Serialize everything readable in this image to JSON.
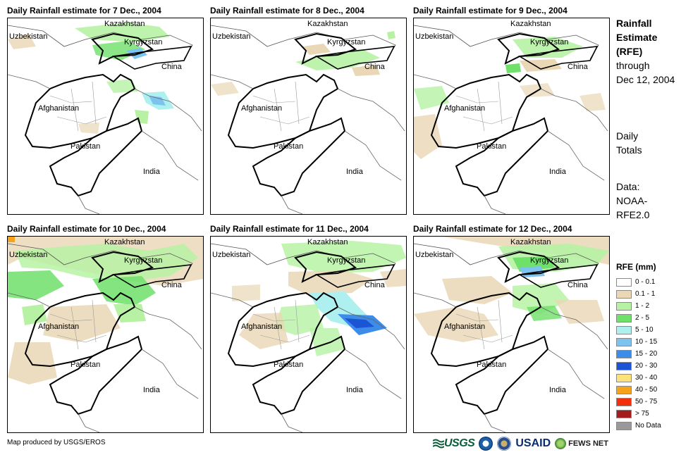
{
  "panels": [
    {
      "title": "Daily Rainfall estimate for 7 Dec., 2004"
    },
    {
      "title": "Daily Rainfall estimate for 8 Dec., 2004"
    },
    {
      "title": "Daily Rainfall estimate for 9 Dec., 2004"
    },
    {
      "title": "Daily Rainfall estimate for 10 Dec., 2004"
    },
    {
      "title": "Daily Rainfall estimate for 11 Dec., 2004"
    },
    {
      "title": "Daily Rainfall estimate for 12 Dec., 2004"
    }
  ],
  "map_labels": {
    "kazakhstan": "Kazakhstan",
    "uzbekistan": "Uzbekistan",
    "kyrgyzstan": "Kyrgyzstan",
    "china": "China",
    "afghanistan": "Afghanistan",
    "pakistan": "Pakistan",
    "india": "India"
  },
  "sidebar": {
    "line1": "Rainfall",
    "line2": "Estimate",
    "line3": "(RFE)",
    "line4": "through",
    "line5": "Dec 12, 2004",
    "daily1": "Daily",
    "daily2": "Totals",
    "data1": "Data:",
    "data2": "NOAA-",
    "data3": "RFE2.0"
  },
  "legend": {
    "title": "RFE (mm)",
    "items": [
      {
        "label": "0 - 0.1",
        "color": "#ffffff"
      },
      {
        "label": "0.1 - 1",
        "color": "#ead7b5"
      },
      {
        "label": "1 - 2",
        "color": "#b7f2a4"
      },
      {
        "label": "2 - 5",
        "color": "#6fe06a"
      },
      {
        "label": "5 - 10",
        "color": "#aeeff0"
      },
      {
        "label": "10 - 15",
        "color": "#7cc3f0"
      },
      {
        "label": "15 - 20",
        "color": "#3d8ce8"
      },
      {
        "label": "20 - 30",
        "color": "#1b55d6"
      },
      {
        "label": "30 - 40",
        "color": "#fbe27a"
      },
      {
        "label": "40 - 50",
        "color": "#f7a21b"
      },
      {
        "label": "50 - 75",
        "color": "#f2300d"
      },
      {
        "label": "> 75",
        "color": "#a31d1d"
      },
      {
        "label": "No Data",
        "color": "#999999"
      }
    ]
  },
  "footer": {
    "credit": "Map produced by USGS/EROS",
    "usgs": "USGS",
    "usaid": "USAID",
    "fews": "FEWS NET"
  },
  "colors": {
    "light_rain": "#ead7b5",
    "rain_1_2": "#b7f2a4",
    "rain_2_5": "#6fe06a",
    "rain_5_10": "#aeeff0",
    "rain_10_15": "#7cc3f0",
    "rain_15_20": "#3d8ce8",
    "rain_20_30": "#1b55d6"
  }
}
